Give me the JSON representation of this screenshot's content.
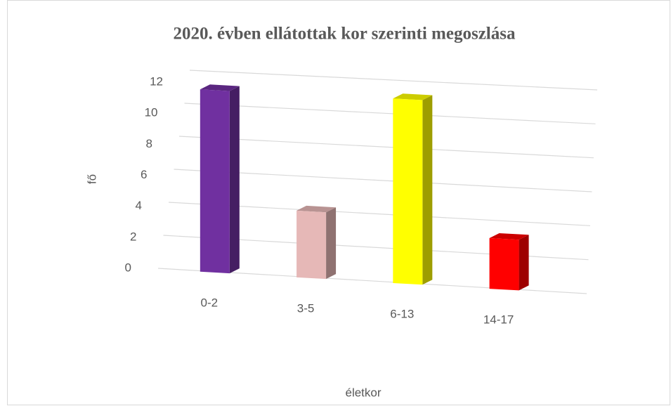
{
  "chart_data": {
    "type": "bar3d",
    "title": "2020. évben ellátottak kor szerinti megoszlása",
    "x_label": "életkor",
    "y_label": "fő",
    "categories": [
      "0-2",
      "3-5",
      "6-13",
      "14-17"
    ],
    "values": [
      11,
      4,
      11,
      3
    ],
    "colors": [
      "#7030a0",
      "#e6b8b7",
      "#ffff00",
      "#ff0000"
    ],
    "ylim": [
      0,
      12
    ],
    "yticks": [
      0,
      2,
      4,
      6,
      8,
      10,
      12
    ],
    "grid": true
  }
}
